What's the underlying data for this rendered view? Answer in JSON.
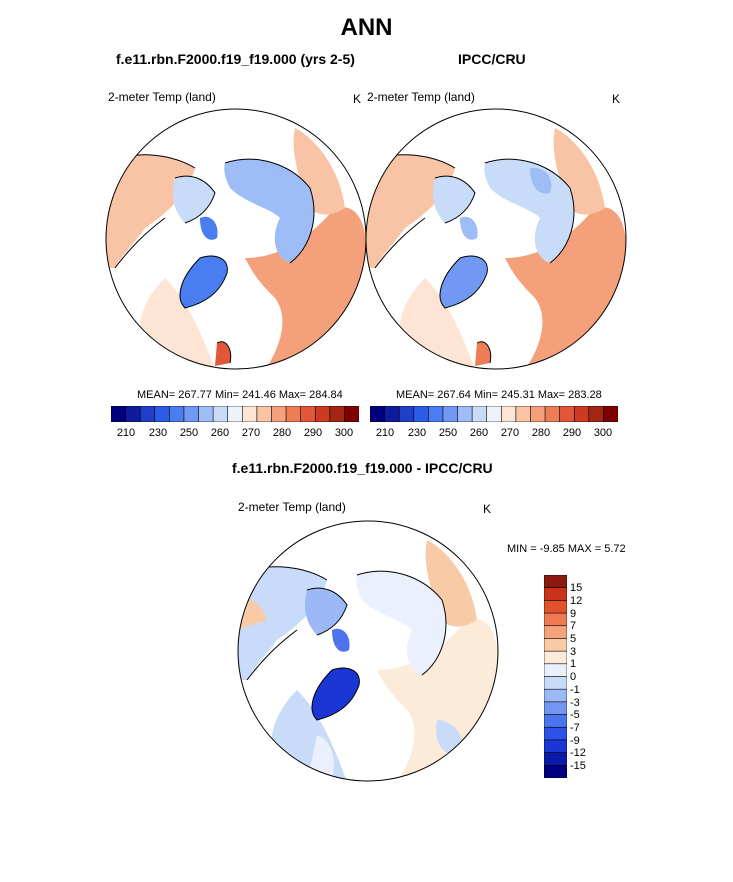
{
  "title": "ANN",
  "colors": {
    "land_absent": "#ffffff",
    "outline": "#000000",
    "abs_scale": [
      "#00007f",
      "#0d1c9c",
      "#1f3fc8",
      "#2b5ce6",
      "#4a7df0",
      "#7198f2",
      "#9ebcf5",
      "#c8dcf9",
      "#eef3fb",
      "#fde4d4",
      "#f9c3a6",
      "#f4a07a",
      "#ec7d55",
      "#e2563a",
      "#cc3a22",
      "#a42512",
      "#7f0000"
    ],
    "diff_scale": [
      "#00007f",
      "#0a1aa8",
      "#1a36d4",
      "#2d52e8",
      "#4d74ef",
      "#7296f2",
      "#9cb9f5",
      "#c8dbf9",
      "#eaf1fc",
      "#fdebd9",
      "#f8caa6",
      "#f4a37a",
      "#ef7a4f",
      "#e2522c",
      "#c9331a",
      "#8a1a0e"
    ]
  },
  "top_left": {
    "case_label": "f.e11.rbn.F2000.f19_f19.000 (yrs 2-5)",
    "var_label": "2-meter Temp (land)",
    "unit": "K",
    "stats_text": "MEAN= 267.77  Min= 241.46  Max= 284.84"
  },
  "top_right": {
    "case_label": "IPCC/CRU",
    "var_label": "2-meter Temp (land)",
    "unit": "K",
    "stats_text": "MEAN= 267.64  Min= 245.31  Max= 283.28"
  },
  "bottom": {
    "case_label": "f.e11.rbn.F2000.f19_f19.000 - IPCC/CRU",
    "var_label": "2-meter Temp (land)",
    "unit": "K",
    "stats_text": "MIN =  -9.85 MAX =   5.72"
  },
  "chart_data": [
    {
      "type": "heatmap",
      "projection": "polar-stereographic (north)",
      "title": "f.e11.rbn.F2000.f19_f19.000 (yrs 2-5)",
      "variable": "2-meter Temp (land)",
      "units": "K",
      "mean": 267.77,
      "min": 241.46,
      "max": 284.84,
      "colorbar_ticks": [
        "210",
        "230",
        "250",
        "260",
        "270",
        "280",
        "290",
        "300"
      ],
      "colorbar_boundaries": [
        210,
        220,
        230,
        240,
        245,
        250,
        255,
        260,
        265,
        270,
        275,
        280,
        285,
        290,
        295,
        300
      ]
    },
    {
      "type": "heatmap",
      "projection": "polar-stereographic (north)",
      "title": "IPCC/CRU",
      "variable": "2-meter Temp (land)",
      "units": "K",
      "mean": 267.64,
      "min": 245.31,
      "max": 283.28,
      "colorbar_ticks": [
        "210",
        "230",
        "250",
        "260",
        "270",
        "280",
        "290",
        "300"
      ],
      "colorbar_boundaries": [
        210,
        220,
        230,
        240,
        245,
        250,
        255,
        260,
        265,
        270,
        275,
        280,
        285,
        290,
        295,
        300
      ]
    },
    {
      "type": "heatmap",
      "projection": "polar-stereographic (north)",
      "title": "f.e11.rbn.F2000.f19_f19.000 - IPCC/CRU",
      "variable": "2-meter Temp (land)",
      "units": "K",
      "min": -9.85,
      "max": 5.72,
      "colorbar_ticks": [
        "15",
        "12",
        "9",
        "7",
        "5",
        "3",
        "1",
        "0",
        "-1",
        "-3",
        "-5",
        "-7",
        "-9",
        "-12",
        "-15"
      ]
    }
  ]
}
